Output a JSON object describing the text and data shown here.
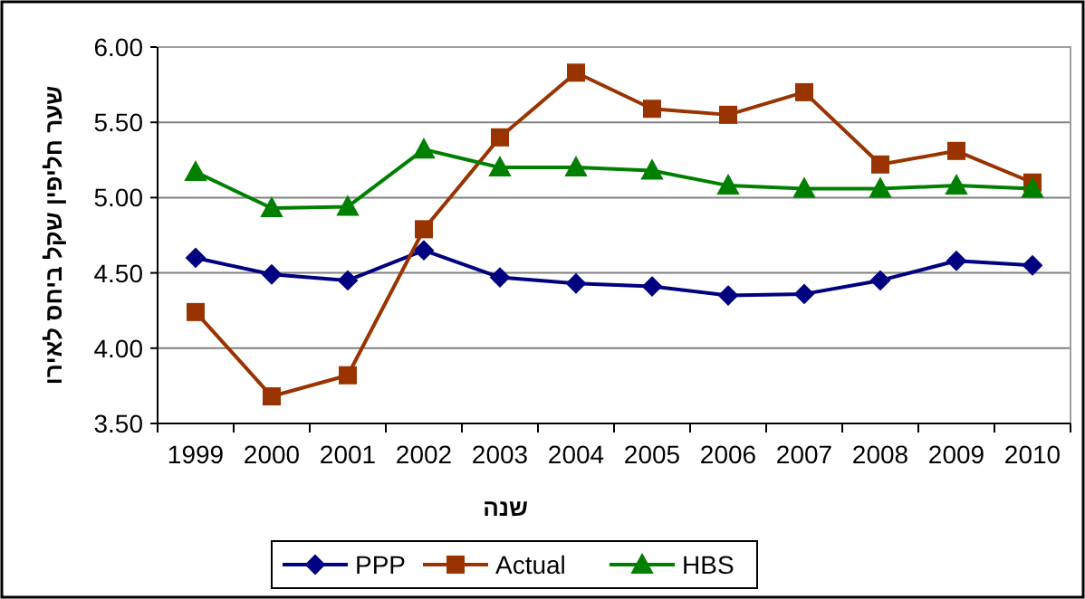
{
  "chart_data": {
    "type": "line",
    "xlabel": "שנה",
    "ylabel": "שער חליפין שקל ביחס לאירו",
    "categories": [
      "1999",
      "2000",
      "2001",
      "2002",
      "2003",
      "2004",
      "2005",
      "2006",
      "2007",
      "2008",
      "2009",
      "2010"
    ],
    "series": [
      {
        "name": "PPP",
        "color": "#000080",
        "marker": "diamond",
        "values": [
          4.6,
          4.49,
          4.45,
          4.65,
          4.47,
          4.43,
          4.41,
          4.35,
          4.36,
          4.45,
          4.58,
          4.55
        ]
      },
      {
        "name": "Actual",
        "color": "#993300",
        "marker": "square",
        "values": [
          4.24,
          3.68,
          3.82,
          4.79,
          5.4,
          5.83,
          5.59,
          5.55,
          5.7,
          5.22,
          5.31,
          5.1
        ]
      },
      {
        "name": "HBS",
        "color": "#008000",
        "marker": "triangle",
        "values": [
          5.17,
          4.93,
          4.94,
          5.32,
          5.2,
          5.2,
          5.18,
          5.08,
          5.06,
          5.06,
          5.08,
          5.06
        ]
      }
    ],
    "ylim": [
      3.5,
      6.0
    ],
    "yticks": [
      {
        "value": 3.5,
        "label": "3.50"
      },
      {
        "value": 4.0,
        "label": "4.00"
      },
      {
        "value": 4.5,
        "label": "4.50"
      },
      {
        "value": 5.0,
        "label": "5.00"
      },
      {
        "value": 5.5,
        "label": "5.50"
      },
      {
        "value": 6.0,
        "label": "6.00"
      }
    ],
    "grid": "y",
    "legend": "bottom"
  }
}
